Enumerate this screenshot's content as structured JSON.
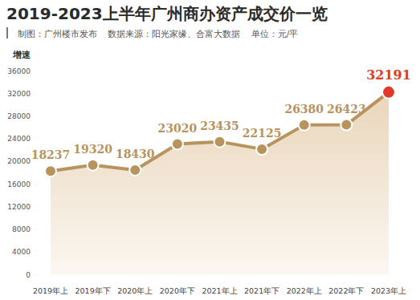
{
  "chart_data": {
    "type": "line",
    "title": "2019-2023上半年广州商办资产成交价一览",
    "subtitle": "制图：广州楼市发布    数据来源：阳光家缘、合富大数据    单位：元/平",
    "y_label": "增速",
    "categories": [
      "2019年上",
      "2019年下",
      "2020年上",
      "2020年下",
      "2021年上",
      "2021年下",
      "2022年上",
      "2022年下",
      "2023年上"
    ],
    "values": [
      18237,
      19320,
      18430,
      23020,
      23435,
      22125,
      26380,
      26423,
      32191
    ],
    "color": "#b8935e",
    "colors": [
      "#b8935e",
      "#b8935e",
      "#b8935e",
      "#b8935e",
      "#b8935e",
      "#b8935e",
      "#b8935e",
      "#b8935e",
      "#e0392a"
    ],
    "ylim": [
      0,
      36000
    ],
    "yticks": [
      0,
      4000,
      8000,
      12000,
      16000,
      20000,
      24000,
      28000,
      32000,
      36000
    ],
    "grid": false,
    "data_labels": true,
    "marker": "circle"
  }
}
